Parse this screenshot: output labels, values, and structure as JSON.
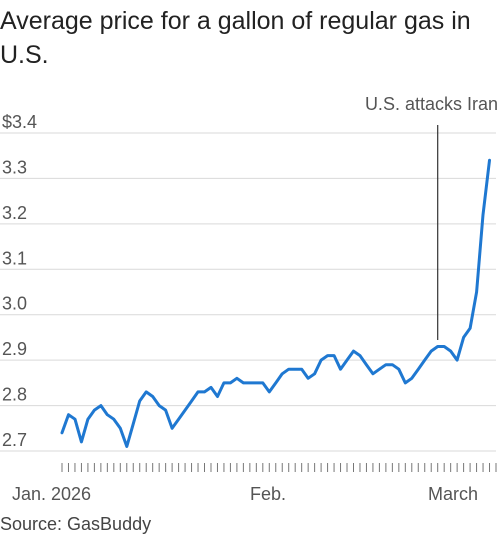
{
  "title": "Average price for a gallon of regular gas in U.S.",
  "source": "Source: GasBuddy",
  "chart_data": {
    "type": "line",
    "title": "Average price for a gallon of regular gas in U.S.",
    "xlabel": "",
    "ylabel": "",
    "y_tick_labels": [
      "$3.4",
      "3.3",
      "3.2",
      "3.1",
      "3.0",
      "2.9",
      "2.8",
      "2.7"
    ],
    "y_tick_values": [
      3.4,
      3.3,
      3.2,
      3.1,
      3.0,
      2.9,
      2.8,
      2.7
    ],
    "ylim": [
      2.7,
      3.4
    ],
    "x_tick_labels": [
      "Jan. 2026",
      "Feb.",
      "March"
    ],
    "xlim": [
      "2026-01-01",
      "2026-03-09"
    ],
    "grid": "horizontal",
    "color": "#1f78d1",
    "series": [
      {
        "x": [
          "2026-01-01",
          "2026-01-02",
          "2026-01-03",
          "2026-01-04",
          "2026-01-05",
          "2026-01-06",
          "2026-01-07",
          "2026-01-08",
          "2026-01-09",
          "2026-01-10",
          "2026-01-11",
          "2026-01-12",
          "2026-01-13",
          "2026-01-14",
          "2026-01-15",
          "2026-01-16",
          "2026-01-17",
          "2026-01-18",
          "2026-01-19",
          "2026-01-20",
          "2026-01-21",
          "2026-01-22",
          "2026-01-23",
          "2026-01-24",
          "2026-01-25",
          "2026-01-26",
          "2026-01-27",
          "2026-01-28",
          "2026-01-29",
          "2026-01-30",
          "2026-01-31",
          "2026-02-01",
          "2026-02-02",
          "2026-02-03",
          "2026-02-04",
          "2026-02-05",
          "2026-02-06",
          "2026-02-07",
          "2026-02-08",
          "2026-02-09",
          "2026-02-10",
          "2026-02-11",
          "2026-02-12",
          "2026-02-13",
          "2026-02-14",
          "2026-02-15",
          "2026-02-16",
          "2026-02-17",
          "2026-02-18",
          "2026-02-19",
          "2026-02-20",
          "2026-02-21",
          "2026-02-22",
          "2026-02-23",
          "2026-02-24",
          "2026-02-25",
          "2026-02-26",
          "2026-02-27",
          "2026-02-28",
          "2026-03-01",
          "2026-03-02",
          "2026-03-03",
          "2026-03-04",
          "2026-03-05",
          "2026-03-06",
          "2026-03-07",
          "2026-03-08"
        ],
        "values": [
          2.74,
          2.78,
          2.77,
          2.72,
          2.77,
          2.79,
          2.8,
          2.78,
          2.77,
          2.75,
          2.71,
          2.76,
          2.81,
          2.83,
          2.82,
          2.8,
          2.79,
          2.75,
          2.77,
          2.79,
          2.81,
          2.83,
          2.83,
          2.84,
          2.82,
          2.85,
          2.85,
          2.86,
          2.85,
          2.85,
          2.85,
          2.85,
          2.83,
          2.85,
          2.87,
          2.88,
          2.88,
          2.88,
          2.86,
          2.87,
          2.9,
          2.91,
          2.91,
          2.88,
          2.9,
          2.92,
          2.91,
          2.89,
          2.87,
          2.88,
          2.89,
          2.89,
          2.88,
          2.85,
          2.86,
          2.88,
          2.9,
          2.92,
          2.93,
          2.93,
          2.92,
          2.9,
          2.95,
          2.97,
          3.05,
          3.22,
          3.34
        ]
      }
    ],
    "annotations": [
      {
        "text": "U.S. attacks Iran",
        "x": "2026-02-28"
      }
    ]
  }
}
